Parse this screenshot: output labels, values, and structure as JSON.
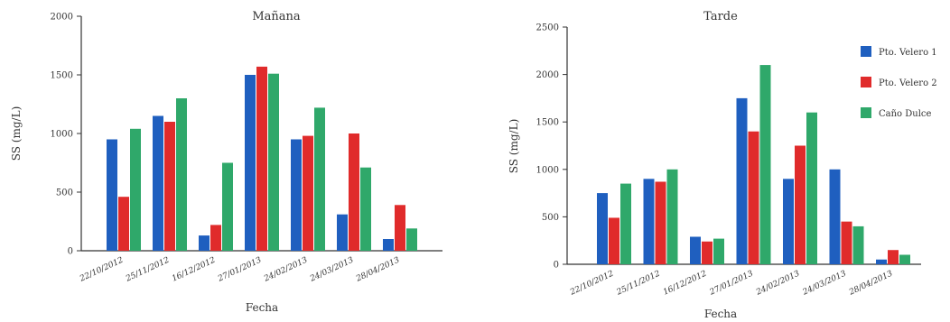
{
  "chart_data": [
    {
      "type": "bar",
      "title": "Mañana",
      "xlabel": "Fecha",
      "ylabel": "SS (mg/L)",
      "ylim": [
        0,
        2000
      ],
      "yticks": [
        0,
        500,
        1000,
        1500,
        2000
      ],
      "categories": [
        "22/10/2012",
        "25/11/2012",
        "16/12/2012",
        "27/01/2013",
        "24/02/2013",
        "24/03/2013",
        "28/04/2013"
      ],
      "series": [
        {
          "name": "Pto. Velero 1",
          "color": "#1f5fbf",
          "values": [
            950,
            1150,
            130,
            1500,
            950,
            310,
            100
          ]
        },
        {
          "name": "Pto. Velero 2",
          "color": "#e02b2b",
          "values": [
            460,
            1100,
            220,
            1570,
            980,
            1000,
            390
          ]
        },
        {
          "name": "Caño Dulce",
          "color": "#2fa86a",
          "values": [
            1040,
            1300,
            750,
            1510,
            1220,
            710,
            190
          ]
        }
      ],
      "grid": false,
      "legend": "none"
    },
    {
      "type": "bar",
      "title": "Tarde",
      "xlabel": "Fecha",
      "ylabel": "SS (mg/L)",
      "ylim": [
        0,
        2500
      ],
      "yticks": [
        0,
        500,
        1000,
        1500,
        2000,
        2500
      ],
      "categories": [
        "22/10/2012",
        "25/11/2012",
        "16/12/2012",
        "27/01/2013",
        "24/02/2013",
        "24/03/2013",
        "28/04/2013"
      ],
      "series": [
        {
          "name": "Pto. Velero 1",
          "color": "#1f5fbf",
          "values": [
            750,
            900,
            290,
            1750,
            900,
            1000,
            50
          ]
        },
        {
          "name": "Pto. Velero 2",
          "color": "#e02b2b",
          "values": [
            490,
            870,
            240,
            1400,
            1250,
            450,
            150
          ]
        },
        {
          "name": "Caño Dulce",
          "color": "#2fa86a",
          "values": [
            850,
            1000,
            270,
            2100,
            1600,
            400,
            100
          ]
        }
      ],
      "grid": false,
      "legend": "right"
    }
  ]
}
